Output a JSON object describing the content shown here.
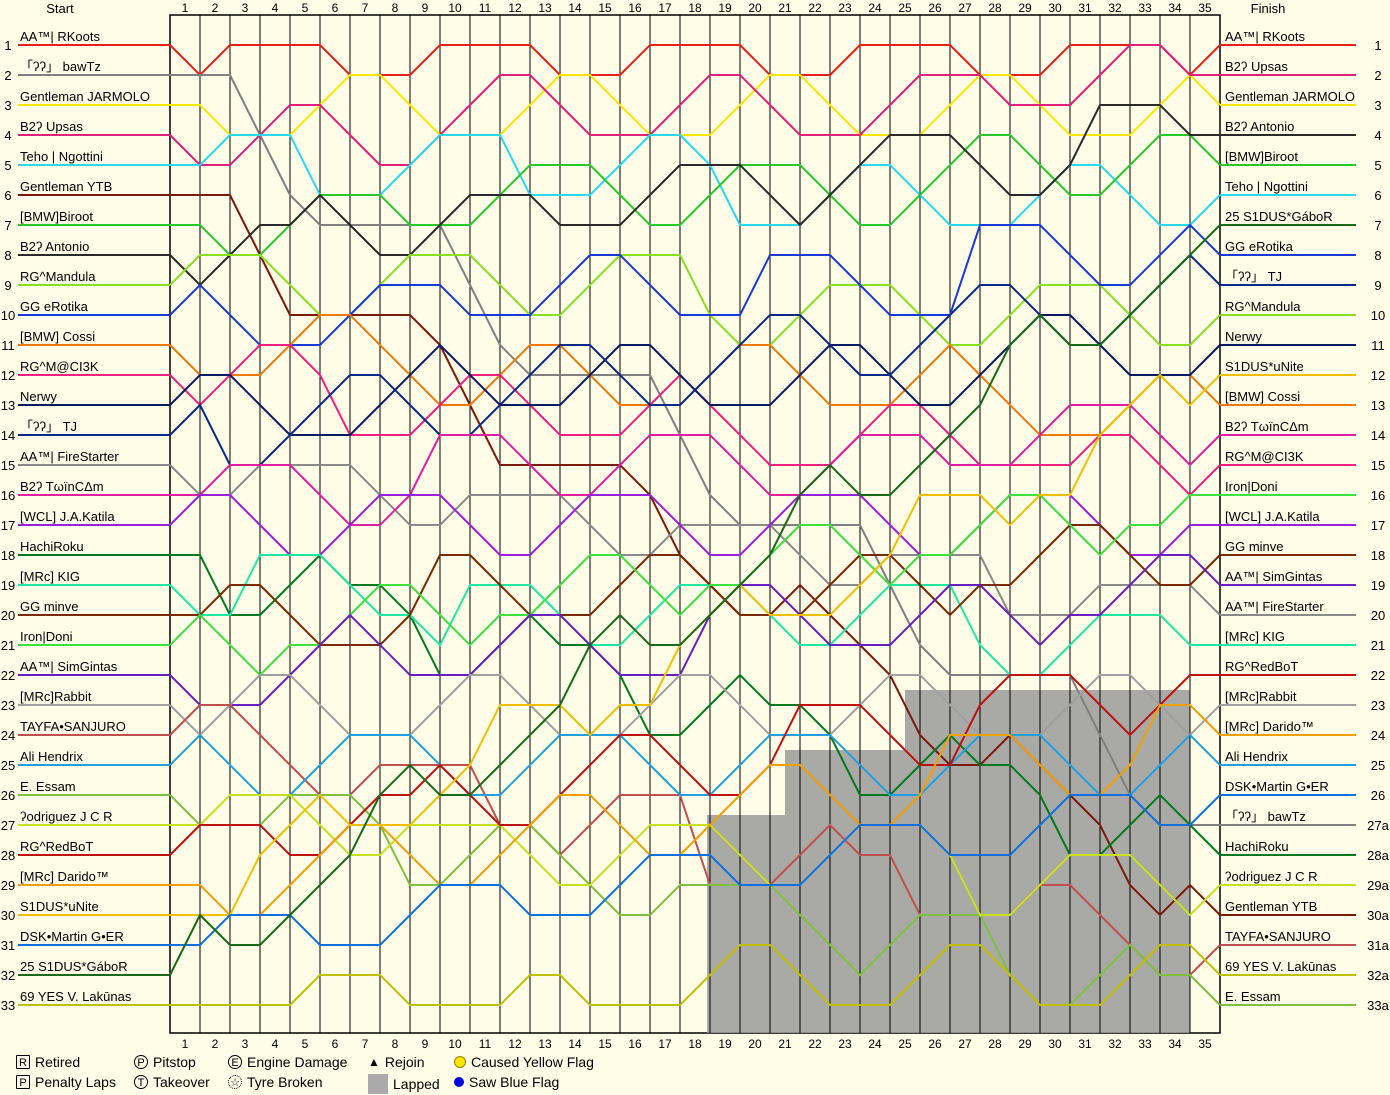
{
  "header": {
    "start_label": "Start",
    "finish_label": "Finish"
  },
  "chart_data": {
    "type": "line",
    "title": "",
    "laps": [
      "1",
      "2",
      "3",
      "4",
      "5",
      "6",
      "7",
      "8",
      "9",
      "10",
      "11",
      "12",
      "13",
      "14",
      "15",
      "16",
      "17",
      "18",
      "19",
      "20",
      "21",
      "22",
      "23",
      "24",
      "25",
      "26",
      "27",
      "28",
      "29",
      "30",
      "31",
      "32",
      "33",
      "34",
      "35"
    ],
    "positions": [
      "1",
      "2",
      "3",
      "4",
      "5",
      "6",
      "7",
      "8",
      "9",
      "10",
      "11",
      "12",
      "13",
      "14",
      "15",
      "16",
      "17",
      "18",
      "19",
      "20",
      "21",
      "22",
      "23",
      "24",
      "25",
      "26",
      "27",
      "28",
      "29",
      "30",
      "31",
      "32",
      "33"
    ],
    "right_positions": [
      "1",
      "2",
      "3",
      "4",
      "5",
      "6",
      "7",
      "8",
      "9",
      "10",
      "11",
      "12",
      "13",
      "14",
      "15",
      "16",
      "17",
      "18",
      "19",
      "20",
      "21",
      "22",
      "23",
      "24",
      "25",
      "26",
      "27a",
      "28a",
      "29a",
      "30a",
      "31a",
      "32a",
      "33a"
    ],
    "start_grid": [
      "AA™| RKoots",
      "「ʔʔ」 bawTz",
      "Gentleman JARMOLO",
      "B2ʔ Upsas",
      "Teho | Ngottini",
      "Gentleman YTB",
      "[BMW]Biroot",
      "B2ʔ Antonio",
      "RG^Mandula",
      "GG eRotika",
      "[BMW] Cossi",
      "RG^M@CI3K",
      "Nerwy",
      "「ʔʔ」 TJ",
      "AA™| FireStarter",
      "B2ʔ TωïnCΔm",
      "[WCL] J.A.Katila",
      "HachiRoku",
      "[MRc] KIG",
      "GG minve",
      "Iron|Doni",
      "AA™| SimGintas",
      "[MRc]Rabbit",
      "TAYFA•SANJURO",
      "Ali Hendrix",
      "E. Essam",
      "ʔodriguez  J C R",
      "RG^RedBoT",
      "[MRc] Darido™",
      "S1DUS*uNite",
      "DSK•Martin G•ER",
      "25 S1DUS*GáboR",
      "69 YES V. Lakūnas"
    ],
    "finish_order": [
      "AA™| RKoots",
      "B2ʔ Upsas",
      "Gentleman JARMOLO",
      "B2ʔ Antonio",
      "[BMW]Biroot",
      "Teho | Ngottini",
      "25 S1DUS*GáboR",
      "GG eRotika",
      "「ʔʔ」 TJ",
      "RG^Mandula",
      "Nerwy",
      "S1DUS*uNite",
      "[BMW] Cossi",
      "B2ʔ TωïnCΔm",
      "RG^M@CI3K",
      "Iron|Doni",
      "[WCL] J.A.Katila",
      "GG minve",
      "AA™| SimGintas",
      "AA™| FireStarter",
      "[MRc] KIG",
      "RG^RedBoT",
      "[MRc]Rabbit",
      "[MRc] Darido™",
      "Ali Hendrix",
      "DSK•Martin G•ER",
      "「ʔʔ」 bawTz",
      "HachiRoku",
      "ʔodriguez  J C R",
      "Gentleman YTB",
      "TAYFA•SANJURO",
      "69 YES V. Lakūnas",
      "E. Essam"
    ],
    "driver_colors": [
      "#e8201a",
      "#808080",
      "#ffe600",
      "#e0207a",
      "#2ad8f0",
      "#7a1a0a",
      "#2ac82a",
      "#2a2a2a",
      "#8ae020",
      "#1a3ad8",
      "#f07a08",
      "#f02080",
      "#0a1a60",
      "#0a2a8a",
      "#8a8a8a",
      "#e020a0",
      "#9a20e0",
      "#007a20",
      "#20e8a0",
      "#7a2a00",
      "#40e040",
      "#6a20c0",
      "#a0a0a0",
      "#c05050",
      "#20a0e0",
      "#80c040",
      "#c8e020",
      "#c01010",
      "#f0a000",
      "#f0c000",
      "#1070e0",
      "#1a6a1a",
      "#c0c000"
    ],
    "grid": true,
    "lapped_shading": true
  },
  "legend": {
    "retired": "Retired",
    "penalty": "Penalty Laps",
    "pitstop": "Pitstop",
    "takeover": "Takeover",
    "engine": "Engine Damage",
    "tyre": "Tyre Broken",
    "rejoin": "Rejoin",
    "lapped": "Lapped",
    "yellow": "Caused Yellow Flag",
    "blue": "Saw Blue Flag",
    "sym_r": "R",
    "sym_p": "P",
    "sym_t": "T",
    "sym_e": "E",
    "sym_rejoin": "▲"
  }
}
